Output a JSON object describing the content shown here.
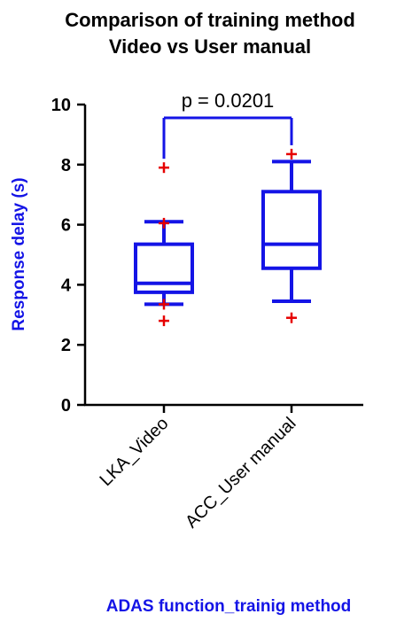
{
  "chart_data": {
    "type": "box",
    "title_lines": [
      "Comparison of training method",
      "Video vs User manual"
    ],
    "xlabel": "ADAS function_trainig method",
    "ylabel": "Response delay (s)",
    "ylim": [
      0,
      10
    ],
    "yticks": [
      0,
      2,
      4,
      6,
      8,
      10
    ],
    "categories": [
      "LKA_Video",
      "ACC_User manual"
    ],
    "boxes": [
      {
        "whisker_low": 3.35,
        "q1": 3.75,
        "median": 4.05,
        "q3": 5.35,
        "whisker_high": 6.1,
        "outliers": [
          2.8,
          3.35,
          6.05,
          7.9
        ]
      },
      {
        "whisker_low": 3.45,
        "q1": 4.55,
        "median": 5.35,
        "q3": 7.1,
        "whisker_high": 8.1,
        "outliers": [
          2.9,
          8.35
        ]
      }
    ],
    "annotation": {
      "text": "p = 0.0201",
      "between": [
        0,
        1
      ]
    },
    "colors": {
      "box": "#1414e6",
      "outlier": "#e60000",
      "axis_title": "#1414e6",
      "axis": "#000000"
    }
  }
}
